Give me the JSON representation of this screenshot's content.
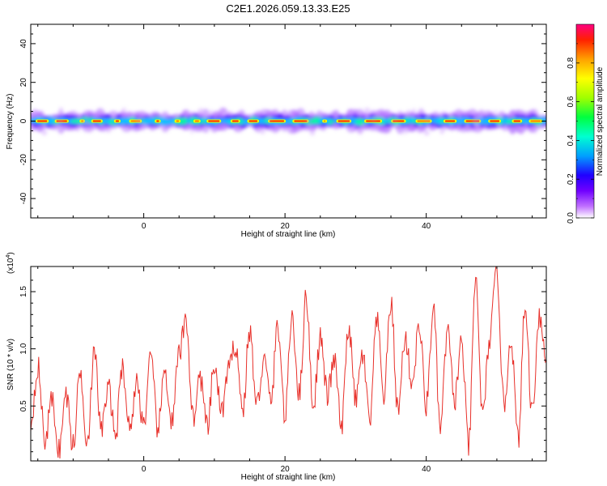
{
  "title": "C2E1.2026.059.13.33.E25",
  "colors": {
    "snr_line": "#e8302a",
    "ridge_dark": "#1a00ff",
    "background": "#ffffff"
  },
  "chart_data": [
    {
      "type": "heatmap",
      "name": "spectrogram",
      "xlabel": "Height of straight line (km)",
      "ylabel": "Frequency (Hz)",
      "xlim": [
        -16,
        57
      ],
      "ylim": [
        -50,
        50
      ],
      "x_ticks": [
        0,
        20,
        40
      ],
      "y_ticks": [
        -40,
        -20,
        0,
        20,
        40
      ],
      "x_tick_labels": [
        "0",
        "20",
        "40"
      ],
      "y_tick_labels": [
        "-40",
        "-20",
        "0",
        "20",
        "40"
      ],
      "ridge_frequency_hz": 0,
      "colorbar": {
        "label": "Normalized spectral amplitude",
        "range": [
          0,
          1
        ],
        "ticks": [
          0.0,
          0.2,
          0.4,
          0.6,
          0.8
        ],
        "tick_labels": [
          "0.0",
          "0.2",
          "0.4",
          "0.6",
          "0.8"
        ],
        "colormap": [
          "#ffffff",
          "#a000ff",
          "#2000ff",
          "#00b0ff",
          "#00ffd0",
          "#00ff30",
          "#b0ff00",
          "#ffff00",
          "#ff9900",
          "#ff2000",
          "#ff0080"
        ]
      }
    },
    {
      "type": "line",
      "name": "snr",
      "xlabel": "Height of straight line (km)",
      "ylabel": "SNR (10 * v/v)",
      "y_scale_factor_label": "(x10",
      "y_scale_exponent": "4",
      "y_scale_close": ")",
      "xlim": [
        -16,
        57
      ],
      "ylim": [
        0.02,
        1.72
      ],
      "x_ticks": [
        0,
        20,
        40
      ],
      "y_ticks": [
        0.5,
        1.0,
        1.5
      ],
      "x_tick_labels": [
        "0",
        "20",
        "40"
      ],
      "y_tick_labels": [
        "0.5",
        "1.0",
        "1.5"
      ],
      "x": [
        -16,
        -15,
        -14,
        -13,
        -12,
        -11,
        -10,
        -9,
        -8,
        -7,
        -6,
        -5,
        -4,
        -3,
        -2,
        -1,
        0,
        1,
        2,
        3,
        4,
        5,
        6,
        7,
        8,
        9,
        10,
        11,
        12,
        13,
        14,
        15,
        16,
        17,
        18,
        19,
        20,
        21,
        22,
        23,
        24,
        25,
        26,
        27,
        28,
        29,
        30,
        31,
        32,
        33,
        34,
        35,
        36,
        37,
        38,
        39,
        40,
        41,
        42,
        43,
        44,
        45,
        46,
        47,
        48,
        49,
        50,
        51,
        52,
        53,
        54,
        55,
        56,
        57
      ],
      "y": [
        0.35,
        0.85,
        0.2,
        0.55,
        0.12,
        0.6,
        0.15,
        0.8,
        0.2,
        0.95,
        0.3,
        0.65,
        0.25,
        0.85,
        0.3,
        0.7,
        0.35,
        0.9,
        0.3,
        0.8,
        0.35,
        0.95,
        1.25,
        0.4,
        0.75,
        0.3,
        0.85,
        0.45,
        0.8,
        1.05,
        0.45,
        1.15,
        0.5,
        0.9,
        0.55,
        1.2,
        0.4,
        1.3,
        0.6,
        1.45,
        0.5,
        1.1,
        0.6,
        0.9,
        0.3,
        1.2,
        0.55,
        0.95,
        0.35,
        1.25,
        0.6,
        1.4,
        0.45,
        1.1,
        0.7,
        1.2,
        0.5,
        1.35,
        0.3,
        1.15,
        0.55,
        1.05,
        0.15,
        1.6,
        0.4,
        1.1,
        1.7,
        0.5,
        1.1,
        0.2,
        1.35,
        0.45,
        1.3,
        0.9
      ]
    }
  ]
}
